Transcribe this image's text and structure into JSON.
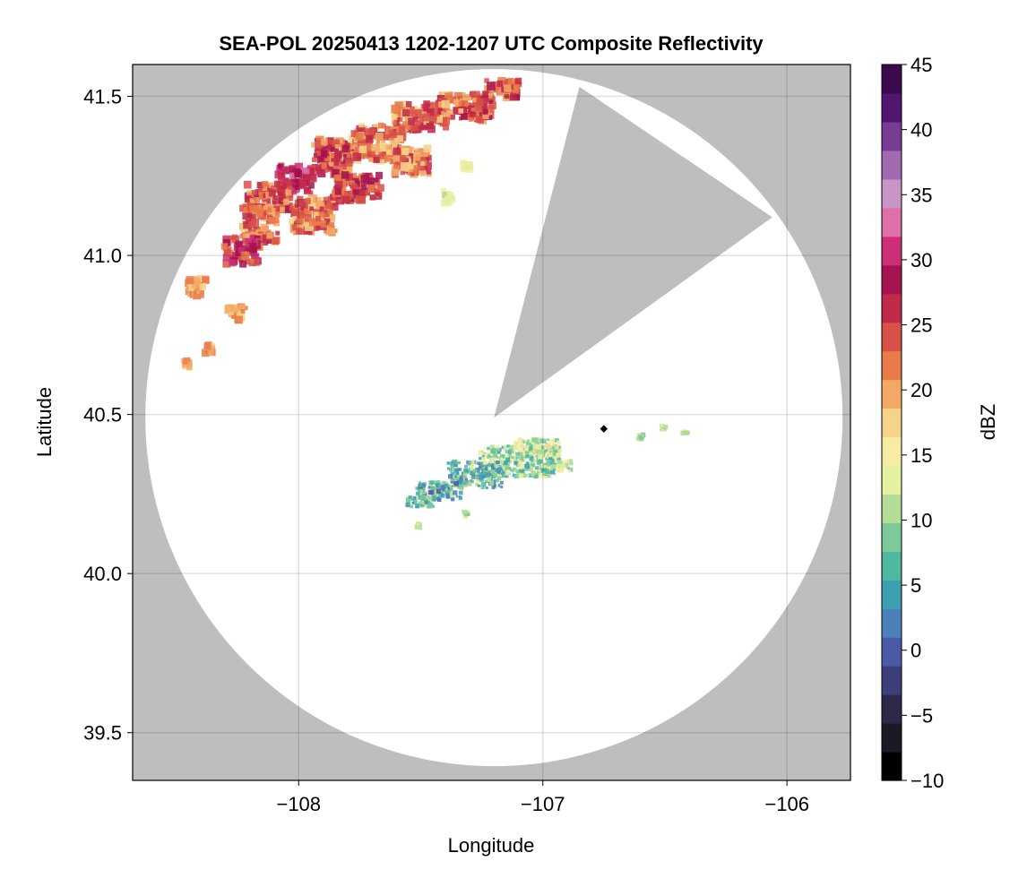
{
  "chart_data": {
    "type": "heatmap",
    "title": "SEA-POL 20250413 1202-1207 UTC Composite Reflectivity",
    "xlabel": "Longitude",
    "ylabel": "Latitude",
    "xlim": [
      -108.68,
      -105.74
    ],
    "ylim": [
      39.35,
      41.6
    ],
    "x_ticks": [
      -108,
      -107,
      -106
    ],
    "y_ticks": [
      39.5,
      40.0,
      40.5,
      41.0,
      41.5
    ],
    "grid": true,
    "radar": {
      "center": [
        -107.2,
        40.49
      ],
      "blocked_sector": {
        "vertex": [
          -107.2,
          40.49
        ],
        "edge_a": [
          -106.85,
          41.53
        ],
        "edge_b": [
          -106.06,
          41.12
        ]
      },
      "background_color": "#bebebe",
      "coverage_color": "#ffffff"
    },
    "site_marker": [
      -106.75,
      40.455
    ],
    "colorbar": {
      "label": "dBZ",
      "min": -10,
      "max": 45,
      "ticks": [
        -10,
        -5,
        0,
        5,
        10,
        15,
        20,
        25,
        30,
        35,
        40,
        45
      ],
      "colormap": [
        "#000000",
        "#1a1a24",
        "#2c2a48",
        "#3b3e78",
        "#4a5aa6",
        "#4d7fba",
        "#3f9fb2",
        "#50b8a0",
        "#7dc99a",
        "#b3dc97",
        "#e5f0a0",
        "#f6eca4",
        "#f6d28a",
        "#f3a965",
        "#e97b4a",
        "#d85048",
        "#c02948",
        "#a61350",
        "#cc2f78",
        "#df6fa8",
        "#c895c6",
        "#a169b0",
        "#7a3c93",
        "#531670",
        "#3b0a4e"
      ]
    },
    "echo_regions": [
      {
        "name": "northern band",
        "dbz_range": [
          12,
          34
        ],
        "peak_dbz": 33
      },
      {
        "name": "southern band",
        "dbz_range": [
          0,
          17
        ],
        "peak_dbz": 17
      }
    ]
  }
}
